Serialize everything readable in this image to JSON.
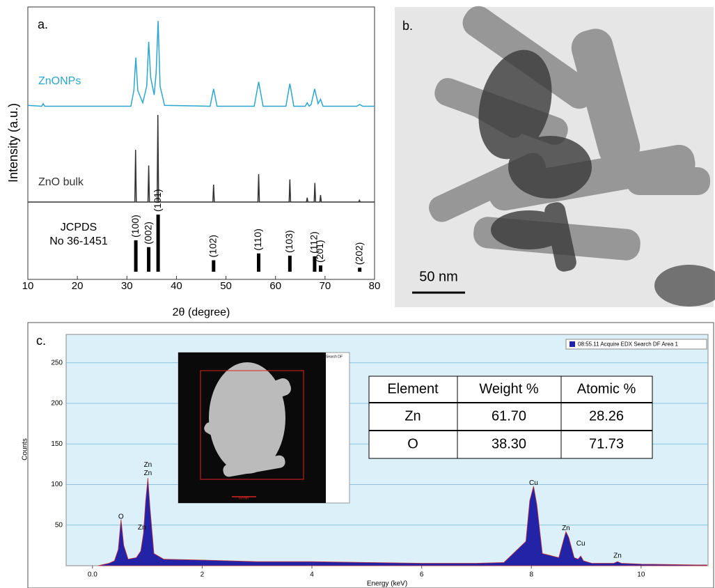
{
  "chart_data": [
    {
      "type": "xrd",
      "panel_label": "a.",
      "xlabel": "2θ (degree)",
      "ylabel": "Intensity (a.u.)",
      "xlim": [
        10,
        80
      ],
      "xticks": [
        10,
        20,
        30,
        40,
        50,
        60,
        70,
        80
      ],
      "series": [
        {
          "name": "ZnONPs",
          "color": "#2aa6cf",
          "x": [
            10,
            12.8,
            13.1,
            13.4,
            30.8,
            31.4,
            31.8,
            32.2,
            33.2,
            34.0,
            34.4,
            34.8,
            35.5,
            35.9,
            36.3,
            36.7,
            37.6,
            46.8,
            47.5,
            48.2,
            55.7,
            56.6,
            57.5,
            62.1,
            62.9,
            63.7,
            66.0,
            66.4,
            66.8,
            67.2,
            67.9,
            68.6,
            69.1,
            69.6,
            76.4,
            77.0,
            77.6,
            80
          ],
          "values": [
            3,
            2,
            5,
            2,
            2,
            20,
            58,
            20,
            6,
            25,
            76,
            35,
            15,
            40,
            100,
            25,
            3,
            2,
            22,
            2,
            2,
            30,
            2,
            2,
            28,
            2,
            2,
            6,
            2,
            4,
            22,
            5,
            10,
            2,
            2,
            4,
            2,
            2
          ]
        },
        {
          "name": "ZnO bulk",
          "color": "#333333",
          "x": [
            10,
            31.6,
            31.75,
            31.9,
            34.25,
            34.4,
            34.55,
            36.1,
            36.25,
            36.4,
            47.35,
            47.5,
            47.65,
            56.45,
            56.6,
            56.75,
            62.75,
            62.9,
            63.05,
            66.25,
            66.4,
            66.55,
            67.8,
            67.95,
            68.1,
            68.95,
            69.1,
            69.25,
            76.8,
            76.95,
            77.1,
            80
          ],
          "values": [
            0,
            0,
            60,
            0,
            0,
            42,
            0,
            0,
            100,
            0,
            0,
            20,
            0,
            0,
            32,
            0,
            0,
            26,
            0,
            0,
            5,
            0,
            0,
            22,
            0,
            0,
            8,
            0,
            0,
            2,
            0,
            0
          ]
        }
      ],
      "reference": {
        "name": [
          "JCPDS",
          "No 36-1451"
        ],
        "color": "#000000",
        "categories": [
          "(100)",
          "(002)",
          "(101)",
          "(102)",
          "(110)",
          "(103)",
          "(112)",
          "(201)",
          "(202)"
        ],
        "x": [
          31.8,
          34.4,
          36.3,
          47.5,
          56.6,
          62.9,
          67.9,
          69.1,
          77.0
        ],
        "values": [
          55,
          43,
          100,
          20,
          32,
          28,
          27,
          11,
          7
        ]
      }
    },
    {
      "type": "edx",
      "panel_label": "c.",
      "xlabel": "Energy (keV)",
      "ylabel": "Counts",
      "xlim": [
        -0.48,
        11.22
      ],
      "xticks": [
        {
          "value": 0,
          "label": "0.0"
        },
        2,
        4,
        6,
        8,
        10
      ],
      "ylim": [
        0,
        285
      ],
      "yticks": [
        50,
        100,
        150,
        200,
        250
      ],
      "grid": true,
      "series": [
        {
          "name": "08:55.11 Acquire EDX Search DF Area 1",
          "color": "#2323a8",
          "x": [
            0.1,
            0.3,
            0.4,
            0.47,
            0.52,
            0.57,
            0.65,
            0.8,
            0.88,
            0.93,
            0.97,
            1.01,
            1.05,
            1.12,
            1.3,
            2,
            3,
            4,
            5,
            6,
            7,
            7.5,
            7.9,
            7.97,
            8.04,
            8.1,
            8.2,
            8.5,
            8.58,
            8.63,
            8.68,
            8.78,
            8.85,
            8.9,
            8.95,
            9.1,
            9.5,
            9.57,
            9.64,
            10,
            11,
            11.2
          ],
          "values": [
            0,
            3,
            6,
            20,
            57,
            25,
            8,
            10,
            18,
            40,
            80,
            108,
            70,
            15,
            8,
            7,
            5,
            5,
            4,
            3,
            3,
            4,
            30,
            80,
            98,
            75,
            15,
            10,
            30,
            42,
            35,
            10,
            8,
            12,
            6,
            3,
            3,
            5,
            3,
            2,
            1,
            1
          ]
        }
      ],
      "peak_labels": [
        {
          "text": "O",
          "x": 0.52,
          "y": 60
        },
        {
          "text": "Zn",
          "x": 0.9,
          "y": 47
        },
        {
          "text": "Zn",
          "x": 1.01,
          "y": 114
        },
        {
          "text": "Zn",
          "x": 1.01,
          "y": 124
        },
        {
          "text": "Cu",
          "x": 8.04,
          "y": 102
        },
        {
          "text": "Zn",
          "x": 8.63,
          "y": 46
        },
        {
          "text": "Cu",
          "x": 8.9,
          "y": 27
        },
        {
          "text": "Zn",
          "x": 9.57,
          "y": 12
        }
      ]
    }
  ],
  "panels": {
    "tem": {
      "label": "b.",
      "scale_bar": "50 nm"
    },
    "inset": {
      "tag": "Search DF",
      "scale_bar": "50 nm"
    },
    "table": {
      "header": [
        "Element",
        "Weight %",
        "Atomic %"
      ],
      "rows": [
        [
          "Zn",
          "61.70",
          "28.26"
        ],
        [
          "O",
          "38.30",
          "71.73"
        ]
      ]
    }
  }
}
